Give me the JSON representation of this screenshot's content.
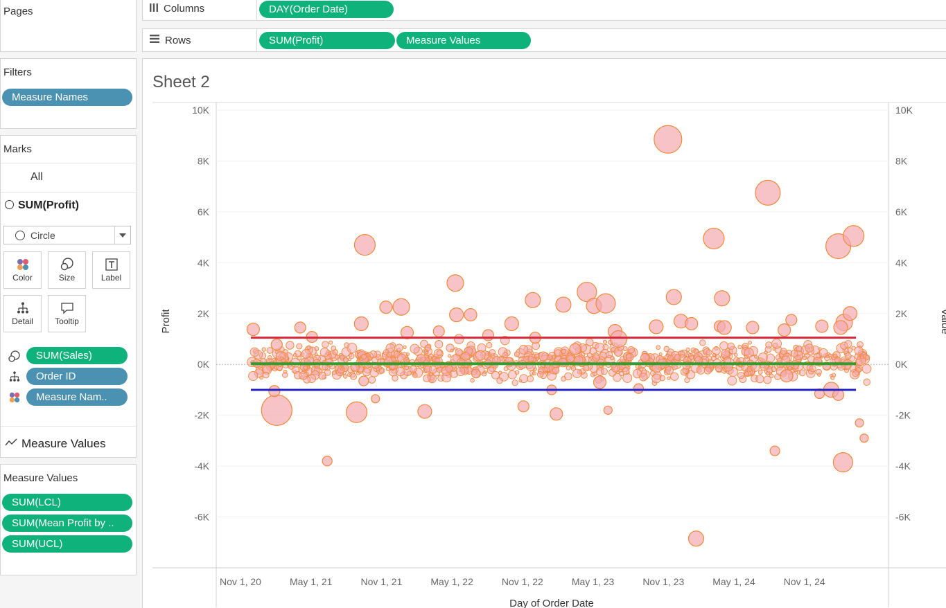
{
  "left": {
    "pages_title": "Pages",
    "filters_title": "Filters",
    "filters": [
      "Measure Names"
    ],
    "marks_title": "Marks",
    "marks_all": "All",
    "marks_sum_profit": "SUM(Profit)",
    "mark_type": "Circle",
    "mark_buttons": {
      "color": "Color",
      "size": "Size",
      "label": "Label",
      "detail": "Detail",
      "tooltip": "Tooltip"
    },
    "mark_fields": [
      "SUM(Sales)",
      "Order ID",
      "Measure Nam.."
    ],
    "marks_measure_values": "Measure Values",
    "measure_values_title": "Measure Values",
    "measure_values": [
      "SUM(LCL)",
      "SUM(Mean Profit by ..",
      "SUM(UCL)"
    ]
  },
  "shelves": {
    "columns_label": "Columns",
    "columns_pills": [
      "DAY(Order Date)"
    ],
    "rows_label": "Rows",
    "rows_pills": [
      "SUM(Profit)",
      "Measure Values"
    ]
  },
  "sheet": {
    "title": "Sheet 2"
  },
  "chart_data": {
    "type": "scatter",
    "xlabel": "Day of Order Date",
    "ylabel": "Profit",
    "y2label": "Value",
    "x_ticks": [
      "Nov 1, 20",
      "May 1, 21",
      "Nov 1, 21",
      "May 1, 22",
      "Nov 1, 22",
      "May 1, 23",
      "Nov 1, 23",
      "May 1, 24",
      "Nov 1, 24"
    ],
    "y_ticks": [
      "10K",
      "8K",
      "6K",
      "4K",
      "2K",
      "0K",
      "-2K",
      "-4K",
      "-6K"
    ],
    "y_tick_values": [
      10000,
      8000,
      6000,
      4000,
      2000,
      0,
      -2000,
      -4000,
      -6000
    ],
    "ylim": [
      -8000,
      10300
    ],
    "x_range_months": [
      "2020-11",
      "2025-03"
    ],
    "reference_lines": [
      {
        "name": "SUM(UCL)",
        "value": 1050,
        "color": "#d62839"
      },
      {
        "name": "SUM(Mean Profit by ..",
        "value": 28,
        "color": "#2e9e2e"
      },
      {
        "name": "SUM(LCL)",
        "value": -1000,
        "color": "#2323c8"
      }
    ],
    "points_note": "Approximate outlier points (x in months since Nov 2020, y profit, s relative sales)",
    "points": [
      {
        "x": 0.2,
        "y": 1380,
        "s": 9
      },
      {
        "x": 2.2,
        "y": -1800,
        "s": 22
      },
      {
        "x": 2.2,
        "y": 780,
        "s": 8
      },
      {
        "x": 2.0,
        "y": -1050,
        "s": 8
      },
      {
        "x": 4.2,
        "y": 1450,
        "s": 8
      },
      {
        "x": 5.2,
        "y": 1080,
        "s": 8
      },
      {
        "x": 6.5,
        "y": -3800,
        "s": 7
      },
      {
        "x": 9.0,
        "y": -1880,
        "s": 15
      },
      {
        "x": 9.7,
        "y": 4700,
        "s": 15
      },
      {
        "x": 9.4,
        "y": 1600,
        "s": 10
      },
      {
        "x": 9.6,
        "y": -650,
        "s": 7
      },
      {
        "x": 10.6,
        "y": -1350,
        "s": 6
      },
      {
        "x": 11.5,
        "y": 2250,
        "s": 9
      },
      {
        "x": 12.8,
        "y": 2260,
        "s": 12
      },
      {
        "x": 13.3,
        "y": 1250,
        "s": 9
      },
      {
        "x": 14.8,
        "y": -1850,
        "s": 10
      },
      {
        "x": 16.0,
        "y": 1300,
        "s": 8
      },
      {
        "x": 17.4,
        "y": 3200,
        "s": 12
      },
      {
        "x": 17.5,
        "y": 1950,
        "s": 10
      },
      {
        "x": 18.7,
        "y": 1950,
        "s": 9
      },
      {
        "x": 20.2,
        "y": 1150,
        "s": 8
      },
      {
        "x": 22.2,
        "y": 1600,
        "s": 10
      },
      {
        "x": 23.2,
        "y": -1650,
        "s": 8
      },
      {
        "x": 24.0,
        "y": 2530,
        "s": 11
      },
      {
        "x": 24.2,
        "y": 1050,
        "s": 8
      },
      {
        "x": 25.6,
        "y": -1000,
        "s": 7
      },
      {
        "x": 26.0,
        "y": -1950,
        "s": 9
      },
      {
        "x": 26.6,
        "y": 2350,
        "s": 11
      },
      {
        "x": 27.6,
        "y": 600,
        "s": 8
      },
      {
        "x": 28.6,
        "y": 2850,
        "s": 14
      },
      {
        "x": 29.2,
        "y": 2300,
        "s": 11
      },
      {
        "x": 30.4,
        "y": -1800,
        "s": 6
      },
      {
        "x": 30.2,
        "y": 2400,
        "s": 14
      },
      {
        "x": 29.7,
        "y": -700,
        "s": 9
      },
      {
        "x": 31.0,
        "y": 1300,
        "s": 10
      },
      {
        "x": 31.3,
        "y": 1000,
        "s": 12
      },
      {
        "x": 33.0,
        "y": -950,
        "s": 7
      },
      {
        "x": 34.5,
        "y": 1480,
        "s": 10
      },
      {
        "x": 35.5,
        "y": 8850,
        "s": 20
      },
      {
        "x": 36.0,
        "y": 2650,
        "s": 11
      },
      {
        "x": 36.6,
        "y": 1700,
        "s": 10
      },
      {
        "x": 37.5,
        "y": 1600,
        "s": 9
      },
      {
        "x": 37.9,
        "y": -6850,
        "s": 11
      },
      {
        "x": 39.4,
        "y": 4950,
        "s": 15
      },
      {
        "x": 39.9,
        "y": 1500,
        "s": 8
      },
      {
        "x": 40.1,
        "y": 2600,
        "s": 11
      },
      {
        "x": 40.3,
        "y": 1450,
        "s": 10
      },
      {
        "x": 42.7,
        "y": 1450,
        "s": 9
      },
      {
        "x": 44.0,
        "y": 6750,
        "s": 18
      },
      {
        "x": 44.6,
        "y": -3400,
        "s": 7
      },
      {
        "x": 45.4,
        "y": 1350,
        "s": 9
      },
      {
        "x": 45.6,
        "y": -450,
        "s": 9
      },
      {
        "x": 46.0,
        "y": 1750,
        "s": 8
      },
      {
        "x": 48.4,
        "y": -1150,
        "s": 7
      },
      {
        "x": 48.6,
        "y": 1500,
        "s": 9
      },
      {
        "x": 49.4,
        "y": -1000,
        "s": 11
      },
      {
        "x": 50.0,
        "y": -1200,
        "s": 8
      },
      {
        "x": 50.5,
        "y": 1650,
        "s": 12
      },
      {
        "x": 50.4,
        "y": -3850,
        "s": 14
      },
      {
        "x": 51.0,
        "y": 2000,
        "s": 10
      },
      {
        "x": 50.0,
        "y": 4650,
        "s": 18
      },
      {
        "x": 51.3,
        "y": 5050,
        "s": 15
      },
      {
        "x": 51.8,
        "y": -2300,
        "s": 6
      },
      {
        "x": 52.2,
        "y": -2900,
        "s": 6
      },
      {
        "x": 50.2,
        "y": 1450,
        "s": 10
      }
    ]
  }
}
